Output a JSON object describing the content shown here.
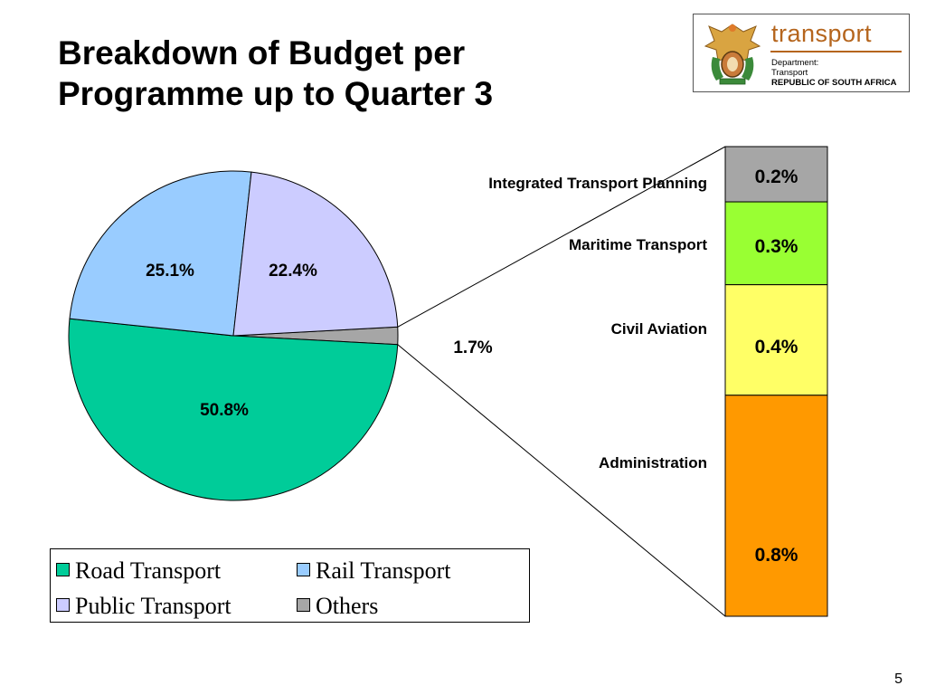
{
  "title": {
    "line1": "Breakdown of Budget per",
    "line2": "Programme up to Quarter 3"
  },
  "logo": {
    "word": "transport",
    "dept_line1": "Department:",
    "dept_line2": "Transport",
    "dept_line3": "REPUBLIC OF SOUTH AFRICA"
  },
  "page_number": "5",
  "colors": {
    "road": "#00cc99",
    "rail": "#99ccff",
    "public": "#ccccff",
    "others": "#a6a6a6",
    "itp": "#a6a6a6",
    "maritime": "#99ff33",
    "civil": "#ffff66",
    "admin": "#ff9900"
  },
  "chart_data": {
    "type": "pie",
    "series": [
      {
        "label": "Road Transport",
        "value": 50.8,
        "value_label": "50.8%",
        "color_key": "road"
      },
      {
        "label": "Rail Transport",
        "value": 25.1,
        "value_label": "25.1%",
        "color_key": "rail"
      },
      {
        "label": "Public Transport",
        "value": 22.4,
        "value_label": "22.4%",
        "color_key": "public"
      },
      {
        "label": "Others",
        "value": 1.7,
        "value_label": "1.7%",
        "color_key": "others"
      }
    ],
    "breakdown": {
      "type": "stacked-bar",
      "of": "Others",
      "items": [
        {
          "label": "Integrated Transport Planning",
          "value": 0.2,
          "value_label": "0.2%",
          "color_key": "itp"
        },
        {
          "label": "Maritime Transport",
          "value": 0.3,
          "value_label": "0.3%",
          "color_key": "maritime"
        },
        {
          "label": "Civil Aviation",
          "value": 0.4,
          "value_label": "0.4%",
          "color_key": "civil"
        },
        {
          "label": "Administration",
          "value": 0.8,
          "value_label": "0.8%",
          "color_key": "admin"
        }
      ]
    },
    "legend": [
      {
        "label": "Road Transport",
        "color_key": "road"
      },
      {
        "label": "Rail Transport",
        "color_key": "rail"
      },
      {
        "label": "Public Transport",
        "color_key": "public"
      },
      {
        "label": "Others",
        "color_key": "others"
      }
    ],
    "legend_position": "bottom-left"
  }
}
